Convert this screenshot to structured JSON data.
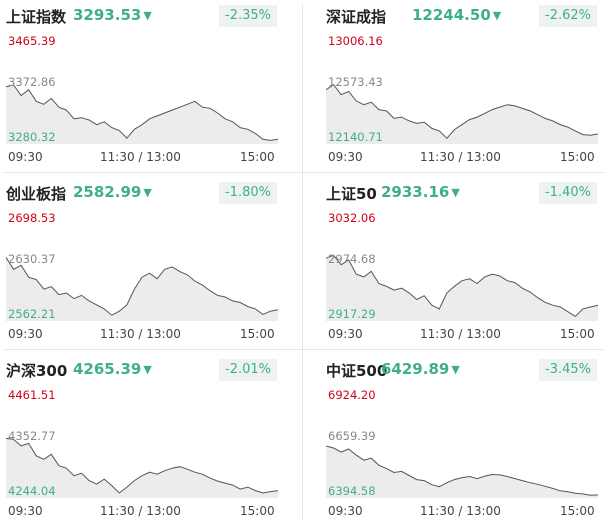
{
  "colors": {
    "down": "#3fae8c",
    "high": "#d0021b",
    "mid_label": "#888888",
    "line": "#555555",
    "area": "#ececec"
  },
  "icons": {
    "down_arrow": "▼"
  },
  "panels": [
    {
      "name": "上证指数",
      "price": "3293.53",
      "change": "-2.35%",
      "high": "3465.39",
      "mid": "3372.86",
      "low": "3280.32",
      "time_start": "09:30",
      "time_mid": "11:30 / 13:00",
      "time_end": "15:00",
      "chart_data": {
        "type": "line",
        "ylim": [
          3280.32,
          3465.39
        ],
        "values": [
          3375,
          3378,
          3360,
          3370,
          3350,
          3345,
          3355,
          3340,
          3335,
          3320,
          3322,
          3318,
          3310,
          3315,
          3305,
          3300,
          3287,
          3302,
          3310,
          3320,
          3325,
          3330,
          3335,
          3340,
          3345,
          3350,
          3340,
          3338,
          3330,
          3320,
          3315,
          3305,
          3302,
          3295,
          3285,
          3283,
          3285
        ]
      }
    },
    {
      "name": "深证成指",
      "price": "12244.50",
      "change": "-2.62%",
      "high": "13006.16",
      "mid": "12573.43",
      "low": "12140.71",
      "time_start": "09:30",
      "time_mid": "11:30 / 13:00",
      "time_end": "15:00",
      "chart_data": {
        "type": "line",
        "ylim": [
          12140.71,
          13006.16
        ],
        "values": [
          12560,
          12600,
          12520,
          12545,
          12470,
          12440,
          12460,
          12400,
          12390,
          12330,
          12340,
          12310,
          12290,
          12300,
          12250,
          12230,
          12170,
          12240,
          12280,
          12320,
          12340,
          12370,
          12400,
          12420,
          12440,
          12430,
          12410,
          12390,
          12360,
          12330,
          12310,
          12280,
          12260,
          12230,
          12200,
          12195,
          12205
        ]
      }
    },
    {
      "name": "创业板指",
      "price": "2582.99",
      "change": "-1.80%",
      "high": "2698.53",
      "mid": "2630.37",
      "low": "2562.21",
      "time_start": "09:30",
      "time_mid": "11:30 / 13:00",
      "time_end": "15:00",
      "chart_data": {
        "type": "line",
        "ylim": [
          2562.21,
          2698.53
        ],
        "values": [
          2640,
          2625,
          2630,
          2615,
          2612,
          2600,
          2603,
          2593,
          2595,
          2588,
          2592,
          2585,
          2580,
          2575,
          2567,
          2572,
          2580,
          2600,
          2615,
          2620,
          2613,
          2625,
          2628,
          2622,
          2618,
          2610,
          2605,
          2598,
          2592,
          2590,
          2585,
          2583,
          2578,
          2575,
          2568,
          2572,
          2574
        ]
      }
    },
    {
      "name": "上证50",
      "price": "2933.16",
      "change": "-1.40%",
      "high": "3032.06",
      "mid": "2974.68",
      "low": "2917.29",
      "time_start": "09:30",
      "time_mid": "11:30 / 13:00",
      "time_end": "15:00",
      "chart_data": {
        "type": "line",
        "ylim": [
          2917.29,
          3032.06
        ],
        "values": [
          2982,
          2985,
          2975,
          2980,
          2965,
          2962,
          2968,
          2955,
          2952,
          2948,
          2950,
          2945,
          2938,
          2942,
          2932,
          2928,
          2945,
          2952,
          2958,
          2960,
          2955,
          2962,
          2965,
          2963,
          2958,
          2956,
          2950,
          2946,
          2940,
          2935,
          2932,
          2930,
          2925,
          2920,
          2928,
          2930,
          2932
        ]
      }
    },
    {
      "name": "沪深300",
      "price": "4265.39",
      "change": "-2.01%",
      "high": "4461.51",
      "mid": "4352.77",
      "low": "4244.04",
      "time_start": "09:30",
      "time_mid": "11:30 / 13:00",
      "time_end": "15:00",
      "chart_data": {
        "type": "line",
        "ylim": [
          4244.04,
          4461.51
        ],
        "values": [
          4360,
          4358,
          4345,
          4350,
          4325,
          4318,
          4328,
          4305,
          4300,
          4285,
          4290,
          4275,
          4268,
          4278,
          4265,
          4250,
          4262,
          4275,
          4285,
          4292,
          4288,
          4295,
          4300,
          4303,
          4298,
          4292,
          4288,
          4280,
          4274,
          4270,
          4266,
          4258,
          4262,
          4255,
          4250,
          4253,
          4255
        ]
      }
    },
    {
      "name": "中证500",
      "price": "6429.89",
      "change": "-3.45%",
      "high": "6924.20",
      "mid": "6659.39",
      "low": "6394.58",
      "time_start": "09:30",
      "time_mid": "11:30 / 13:00",
      "time_end": "15:00",
      "chart_data": {
        "type": "line",
        "ylim": [
          6394.58,
          6924.2
        ],
        "values": [
          6640,
          6630,
          6610,
          6625,
          6595,
          6570,
          6580,
          6545,
          6530,
          6510,
          6515,
          6495,
          6475,
          6470,
          6450,
          6440,
          6460,
          6475,
          6485,
          6490,
          6480,
          6492,
          6500,
          6498,
          6490,
          6480,
          6470,
          6460,
          6452,
          6442,
          6432,
          6420,
          6415,
          6408,
          6405,
          6398,
          6400
        ]
      }
    }
  ]
}
